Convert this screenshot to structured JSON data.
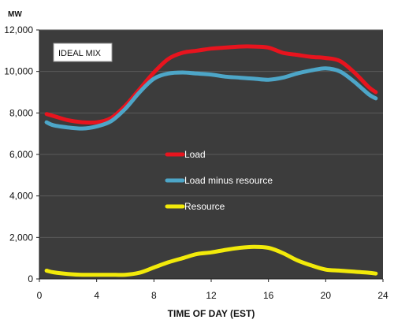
{
  "chart_data": {
    "type": "line",
    "y_unit": "MW",
    "xlabel": "TIME OF DAY (EST)",
    "ylabel": "",
    "annotation": "IDEAL MIX",
    "xlim": [
      0,
      24
    ],
    "ylim": [
      0,
      12000
    ],
    "x_ticks": [
      0,
      4,
      8,
      12,
      16,
      20,
      24
    ],
    "y_ticks": [
      0,
      2000,
      4000,
      6000,
      8000,
      10000,
      12000
    ],
    "x_tick_labels": [
      "0",
      "4",
      "8",
      "12",
      "16",
      "20",
      "24"
    ],
    "y_tick_labels": [
      "0",
      "2,000",
      "4,000",
      "6,000",
      "8,000",
      "10,000",
      "12,000"
    ],
    "grid": true,
    "legend_position": "center",
    "plot_background": "#3c3c3c",
    "series": [
      {
        "name": "Load",
        "color": "#e8141e",
        "points": [
          [
            0.5,
            7950
          ],
          [
            1,
            7850
          ],
          [
            2,
            7650
          ],
          [
            3,
            7550
          ],
          [
            4,
            7550
          ],
          [
            5,
            7750
          ],
          [
            6,
            8350
          ],
          [
            7,
            9150
          ],
          [
            8,
            9950
          ],
          [
            9,
            10600
          ],
          [
            10,
            10900
          ],
          [
            11,
            11000
          ],
          [
            12,
            11100
          ],
          [
            13,
            11150
          ],
          [
            14,
            11200
          ],
          [
            15,
            11200
          ],
          [
            16,
            11150
          ],
          [
            17,
            10900
          ],
          [
            18,
            10800
          ],
          [
            19,
            10700
          ],
          [
            20,
            10650
          ],
          [
            21,
            10500
          ],
          [
            22,
            9950
          ],
          [
            23,
            9250
          ],
          [
            23.5,
            9000
          ]
        ]
      },
      {
        "name": "Load minus resource",
        "color": "#4da6c8",
        "points": [
          [
            0.5,
            7550
          ],
          [
            1,
            7400
          ],
          [
            2,
            7300
          ],
          [
            3,
            7250
          ],
          [
            4,
            7350
          ],
          [
            5,
            7600
          ],
          [
            6,
            8200
          ],
          [
            7,
            9000
          ],
          [
            8,
            9650
          ],
          [
            9,
            9900
          ],
          [
            10,
            9950
          ],
          [
            11,
            9900
          ],
          [
            12,
            9850
          ],
          [
            13,
            9750
          ],
          [
            14,
            9700
          ],
          [
            15,
            9650
          ],
          [
            16,
            9600
          ],
          [
            17,
            9700
          ],
          [
            18,
            9900
          ],
          [
            19,
            10050
          ],
          [
            20,
            10150
          ],
          [
            21,
            10000
          ],
          [
            22,
            9500
          ],
          [
            23,
            8900
          ],
          [
            23.5,
            8700
          ]
        ]
      },
      {
        "name": "Resource",
        "color": "#f2ea0a",
        "points": [
          [
            0.5,
            400
          ],
          [
            1,
            320
          ],
          [
            2,
            240
          ],
          [
            3,
            200
          ],
          [
            4,
            200
          ],
          [
            5,
            200
          ],
          [
            6,
            200
          ],
          [
            7,
            300
          ],
          [
            8,
            550
          ],
          [
            9,
            800
          ],
          [
            10,
            1000
          ],
          [
            11,
            1200
          ],
          [
            12,
            1280
          ],
          [
            13,
            1400
          ],
          [
            14,
            1500
          ],
          [
            15,
            1550
          ],
          [
            16,
            1500
          ],
          [
            17,
            1250
          ],
          [
            18,
            900
          ],
          [
            19,
            650
          ],
          [
            20,
            450
          ],
          [
            21,
            400
          ],
          [
            22,
            350
          ],
          [
            23,
            300
          ],
          [
            23.5,
            260
          ]
        ]
      }
    ]
  }
}
